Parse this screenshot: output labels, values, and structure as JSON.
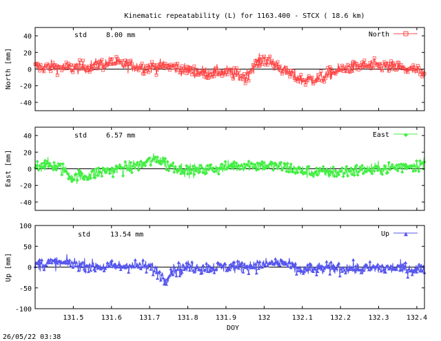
{
  "colors": {
    "north": "#ff4444",
    "east": "#44ee44",
    "up": "#5555ee",
    "axis": "#000000"
  },
  "chart_data": {
    "type": "line",
    "title": "Kinematic repeatability (L) for 1163.400 - STCX  ( 18.6 km)",
    "timestamp": "26/05/22 03:38",
    "xlabel": "DOY",
    "xlim": [
      131.4,
      132.42
    ],
    "xticks": [
      131.5,
      131.6,
      131.7,
      131.8,
      131.9,
      132.0,
      132.1,
      132.2,
      132.3,
      132.4
    ],
    "xtick_labels": [
      "131.5",
      "131.6",
      "131.7",
      "131.8",
      "131.9",
      "132",
      "132.1",
      "132.2",
      "132.3",
      "132.4"
    ],
    "panels": [
      {
        "name": "north",
        "ylabel": "North [mm]",
        "ylim": [
          -50,
          50
        ],
        "yticks": [
          40,
          20,
          0,
          -20,
          -40
        ],
        "std_label": "std",
        "std_value": "8.00 mm",
        "legend": "North",
        "trend": [
          [
            131.4,
            2
          ],
          [
            131.45,
            3
          ],
          [
            131.5,
            1
          ],
          [
            131.55,
            4
          ],
          [
            131.6,
            8
          ],
          [
            131.65,
            4
          ],
          [
            131.7,
            2
          ],
          [
            131.75,
            4
          ],
          [
            131.8,
            -2
          ],
          [
            131.85,
            -4
          ],
          [
            131.9,
            -3
          ],
          [
            131.95,
            -10
          ],
          [
            131.98,
            8
          ],
          [
            132.0,
            12
          ],
          [
            132.03,
            5
          ],
          [
            132.06,
            -4
          ],
          [
            132.1,
            -14
          ],
          [
            132.15,
            -10
          ],
          [
            132.2,
            0
          ],
          [
            132.25,
            3
          ],
          [
            132.3,
            4
          ],
          [
            132.35,
            2
          ],
          [
            132.4,
            -2
          ],
          [
            132.42,
            -8
          ]
        ]
      },
      {
        "name": "east",
        "ylabel": "East [mm]",
        "ylim": [
          -50,
          50
        ],
        "yticks": [
          40,
          20,
          0,
          -20,
          -40
        ],
        "std_label": "std",
        "std_value": "6.57 mm",
        "legend": "East",
        "trend": [
          [
            131.4,
            3
          ],
          [
            131.43,
            5
          ],
          [
            131.47,
            0
          ],
          [
            131.5,
            -10
          ],
          [
            131.53,
            -8
          ],
          [
            131.57,
            -4
          ],
          [
            131.6,
            -2
          ],
          [
            131.65,
            2
          ],
          [
            131.7,
            8
          ],
          [
            131.72,
            12
          ],
          [
            131.75,
            4
          ],
          [
            131.8,
            -2
          ],
          [
            131.85,
            -1
          ],
          [
            131.9,
            2
          ],
          [
            131.95,
            5
          ],
          [
            132.0,
            4
          ],
          [
            132.05,
            2
          ],
          [
            132.1,
            -3
          ],
          [
            132.15,
            -5
          ],
          [
            132.2,
            -4
          ],
          [
            132.25,
            -2
          ],
          [
            132.3,
            0
          ],
          [
            132.35,
            2
          ],
          [
            132.4,
            4
          ],
          [
            132.42,
            6
          ]
        ]
      },
      {
        "name": "up",
        "ylabel": "Up [mm]",
        "ylim": [
          -100,
          100
        ],
        "yticks": [
          100,
          50,
          0,
          -50,
          -100
        ],
        "std_label": "std",
        "std_value": "13.54 mm",
        "legend": "Up",
        "trend": [
          [
            131.4,
            5
          ],
          [
            131.45,
            10
          ],
          [
            131.5,
            8
          ],
          [
            131.55,
            2
          ],
          [
            131.6,
            0
          ],
          [
            131.65,
            5
          ],
          [
            131.7,
            0
          ],
          [
            131.72,
            -10
          ],
          [
            131.74,
            -30
          ],
          [
            131.76,
            -8
          ],
          [
            131.8,
            0
          ],
          [
            131.85,
            -2
          ],
          [
            131.9,
            0
          ],
          [
            131.95,
            2
          ],
          [
            132.0,
            6
          ],
          [
            132.05,
            12
          ],
          [
            132.08,
            -5
          ],
          [
            132.1,
            -8
          ],
          [
            132.15,
            -4
          ],
          [
            132.2,
            -2
          ],
          [
            132.25,
            -5
          ],
          [
            132.3,
            -3
          ],
          [
            132.35,
            -2
          ],
          [
            132.4,
            -5
          ],
          [
            132.42,
            -3
          ]
        ]
      }
    ]
  }
}
